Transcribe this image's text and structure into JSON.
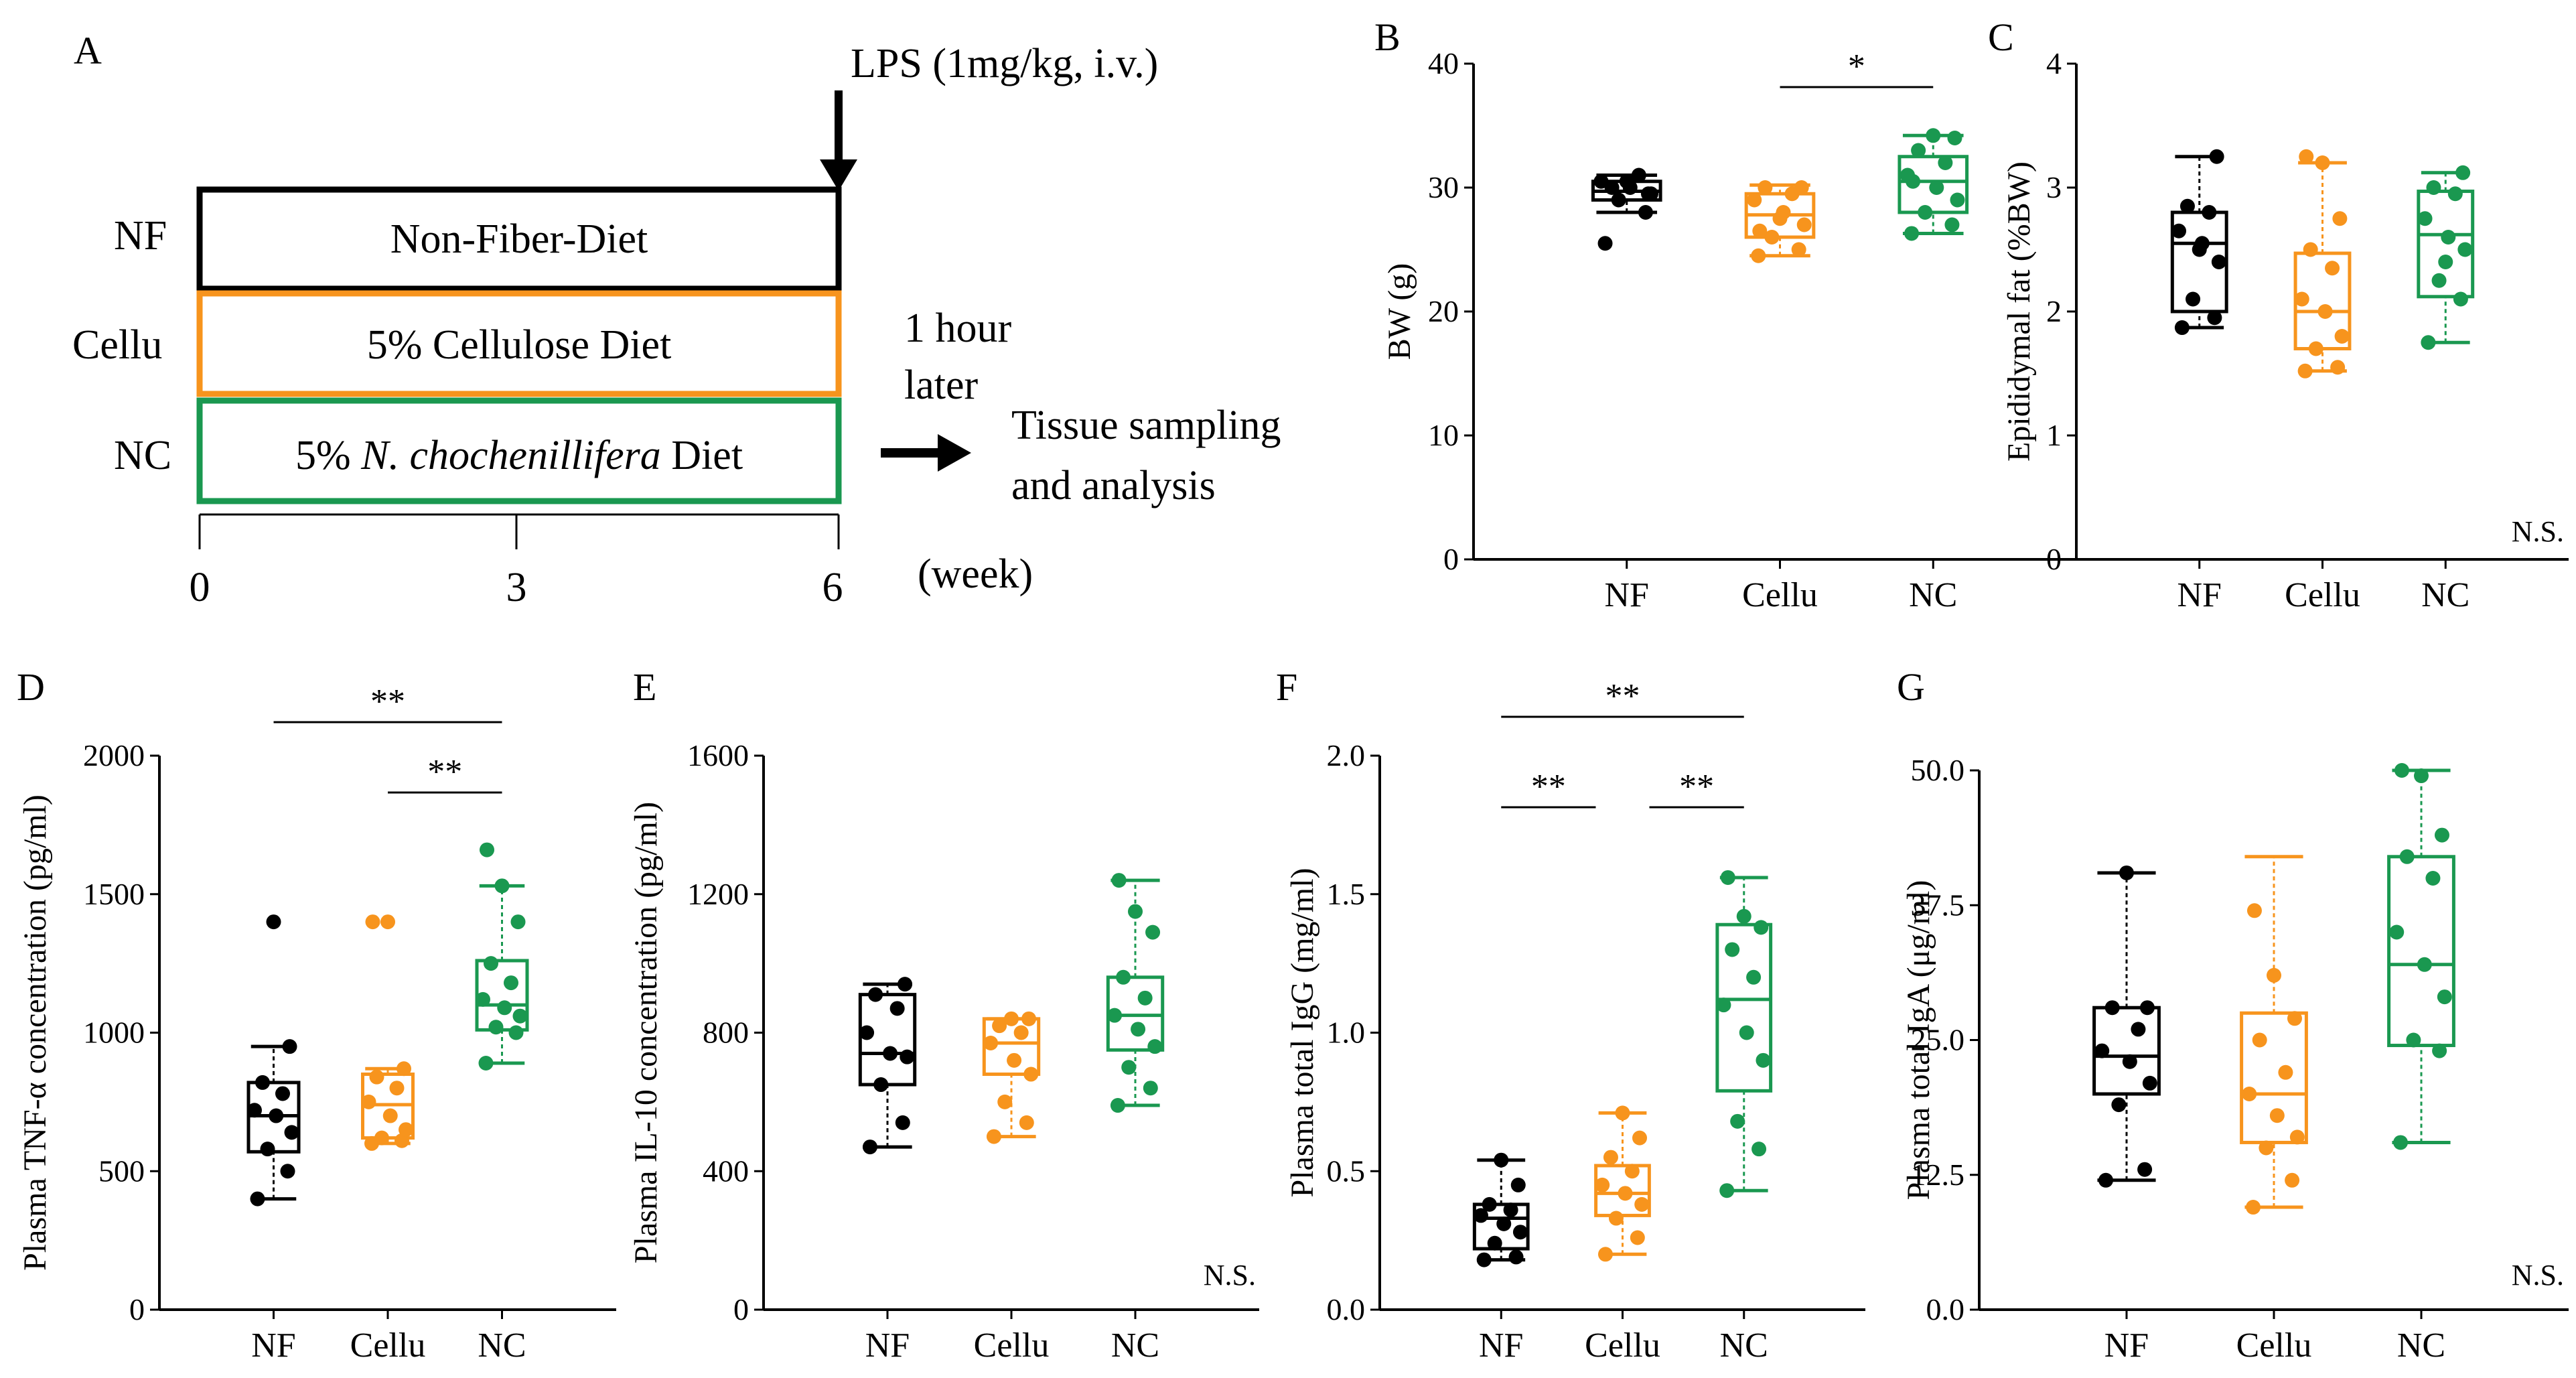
{
  "colors": {
    "NF": "#000000",
    "Cellu": "#f7941d",
    "NC": "#1a9850"
  },
  "diagram": {
    "panel": "A",
    "lps_label": "LPS (1mg/kg, i.v.)",
    "rows": [
      {
        "group": "NF",
        "diet_parts": [
          "Non-Fiber-Diet"
        ],
        "color": "#000000"
      },
      {
        "group": "Cellu",
        "diet_parts": [
          "5% Cellulose Diet"
        ],
        "color": "#f7941d"
      },
      {
        "group": "NC",
        "diet_parts": [
          "5% ",
          "N. chochenillifera",
          " Diet"
        ],
        "color": "#1a9850"
      }
    ],
    "later_lines": [
      "1 hour",
      "later"
    ],
    "outcome_lines": [
      "Tissue sampling",
      "and analysis"
    ],
    "week_ticks": [
      "0",
      "3",
      "6"
    ],
    "week_unit": "(week)"
  },
  "chart_data": [
    {
      "panel": "B",
      "type": "boxplot",
      "ylabel": "BW (g)",
      "categories": [
        "NF",
        "Cellu",
        "NC"
      ],
      "ylim": [
        0,
        40
      ],
      "yticks": [
        "0",
        "10",
        "20",
        "30",
        "40"
      ],
      "ytick_values": [
        0,
        10,
        20,
        30,
        40
      ],
      "series": [
        {
          "name": "NF",
          "q1": 29.0,
          "median": 29.7,
          "q3": 30.5,
          "whisker_low": 28.0,
          "whisker_high": 31.0,
          "points": [
            25.5,
            28,
            29,
            29.5,
            30,
            30.5,
            31,
            30,
            29.5,
            30.5
          ]
        },
        {
          "name": "Cellu",
          "q1": 26.0,
          "median": 27.8,
          "q3": 29.5,
          "whisker_low": 24.5,
          "whisker_high": 30.2,
          "points": [
            24.5,
            25,
            26,
            27,
            28,
            29,
            29.5,
            30,
            30,
            27.5,
            26.5
          ]
        },
        {
          "name": "NC",
          "q1": 28.0,
          "median": 30.5,
          "q3": 32.5,
          "whisker_low": 26.3,
          "whisker_high": 34.2,
          "points": [
            26.3,
            27,
            28,
            29,
            30,
            31,
            32,
            33,
            34,
            34.2,
            30.5
          ]
        }
      ],
      "significance": [
        {
          "from": 1,
          "to": 2,
          "label": "*"
        }
      ],
      "note": ""
    },
    {
      "panel": "C",
      "type": "boxplot",
      "ylabel": "Epididymal  fat (%BW)",
      "categories": [
        "NF",
        "Cellu",
        "NC"
      ],
      "ylim": [
        0,
        4
      ],
      "yticks": [
        "0",
        "1",
        "2",
        "3",
        "4"
      ],
      "ytick_values": [
        0,
        1,
        2,
        3,
        4
      ],
      "series": [
        {
          "name": "NF",
          "q1": 2.0,
          "median": 2.55,
          "q3": 2.8,
          "whisker_low": 1.87,
          "whisker_high": 3.25,
          "points": [
            1.87,
            1.95,
            2.1,
            2.4,
            2.55,
            2.65,
            2.8,
            2.85,
            3.25,
            2.5
          ]
        },
        {
          "name": "Cellu",
          "q1": 1.7,
          "median": 2.0,
          "q3": 2.47,
          "whisker_low": 1.52,
          "whisker_high": 3.2,
          "points": [
            1.52,
            1.55,
            1.7,
            1.8,
            2.0,
            2.1,
            2.35,
            2.5,
            2.75,
            3.2,
            3.25
          ]
        },
        {
          "name": "NC",
          "q1": 2.12,
          "median": 2.62,
          "q3": 2.97,
          "whisker_low": 1.75,
          "whisker_high": 3.12,
          "points": [
            1.75,
            2.1,
            2.25,
            2.5,
            2.6,
            2.75,
            2.95,
            3.0,
            3.12,
            2.4
          ]
        }
      ],
      "significance": [],
      "note": "N.S."
    },
    {
      "panel": "D",
      "type": "boxplot",
      "ylabel": "Plasma TNF-α concentration (pg/ml)",
      "categories": [
        "NF",
        "Cellu",
        "NC"
      ],
      "ylim": [
        0,
        2000
      ],
      "yticks": [
        "0",
        "500",
        "1000",
        "1500",
        "2000"
      ],
      "ytick_values": [
        0,
        500,
        1000,
        1500,
        2000
      ],
      "series": [
        {
          "name": "NF",
          "q1": 570,
          "median": 700,
          "q3": 820,
          "whisker_low": 400,
          "whisker_high": 950,
          "points": [
            400,
            500,
            580,
            640,
            700,
            720,
            780,
            820,
            950,
            1400
          ]
        },
        {
          "name": "Cellu",
          "q1": 620,
          "median": 740,
          "q3": 850,
          "whisker_low": 600,
          "whisker_high": 870,
          "points": [
            600,
            610,
            620,
            650,
            700,
            750,
            800,
            840,
            870,
            1400,
            1400
          ]
        },
        {
          "name": "NC",
          "q1": 1010,
          "median": 1100,
          "q3": 1260,
          "whisker_low": 890,
          "whisker_high": 1530,
          "points": [
            890,
            1000,
            1020,
            1060,
            1090,
            1120,
            1180,
            1250,
            1400,
            1530,
            1660
          ]
        }
      ],
      "significance": [
        {
          "from": 0,
          "to": 2,
          "label": "**"
        },
        {
          "from": 1,
          "to": 2,
          "label": "**"
        }
      ],
      "note": ""
    },
    {
      "panel": "E",
      "type": "boxplot",
      "ylabel": "Plasma IL-10 concentration (pg/ml)",
      "categories": [
        "NF",
        "Cellu",
        "NC"
      ],
      "ylim": [
        0,
        1600
      ],
      "yticks": [
        "0",
        "400",
        "800",
        "1200",
        "1600"
      ],
      "ytick_values": [
        0,
        400,
        800,
        1200,
        1600
      ],
      "series": [
        {
          "name": "NF",
          "q1": 650,
          "median": 740,
          "q3": 910,
          "whisker_low": 470,
          "whisker_high": 940,
          "points": [
            470,
            540,
            650,
            730,
            740,
            800,
            870,
            910,
            940
          ]
        },
        {
          "name": "Cellu",
          "q1": 680,
          "median": 770,
          "q3": 840,
          "whisker_low": 500,
          "whisker_high": 840,
          "points": [
            500,
            540,
            600,
            680,
            720,
            770,
            800,
            820,
            840,
            840
          ]
        },
        {
          "name": "NC",
          "q1": 750,
          "median": 850,
          "q3": 960,
          "whisker_low": 590,
          "whisker_high": 1240,
          "points": [
            590,
            640,
            700,
            760,
            810,
            850,
            900,
            960,
            1090,
            1150,
            1240
          ]
        }
      ],
      "significance": [],
      "note": "N.S."
    },
    {
      "panel": "F",
      "type": "boxplot",
      "ylabel": "Plasma total IgG (mg/ml)",
      "categories": [
        "NF",
        "Cellu",
        "NC"
      ],
      "ylim": [
        0,
        2.0
      ],
      "yticks": [
        "0.0",
        "0.5",
        "1.0",
        "1.5",
        "2.0"
      ],
      "ytick_values": [
        0,
        0.5,
        1.0,
        1.5,
        2.0
      ],
      "series": [
        {
          "name": "NF",
          "q1": 0.22,
          "median": 0.33,
          "q3": 0.38,
          "whisker_low": 0.18,
          "whisker_high": 0.54,
          "points": [
            0.18,
            0.19,
            0.24,
            0.28,
            0.31,
            0.34,
            0.36,
            0.38,
            0.45,
            0.54
          ]
        },
        {
          "name": "Cellu",
          "q1": 0.34,
          "median": 0.42,
          "q3": 0.52,
          "whisker_low": 0.2,
          "whisker_high": 0.71,
          "points": [
            0.2,
            0.26,
            0.33,
            0.38,
            0.42,
            0.45,
            0.5,
            0.55,
            0.62,
            0.71
          ]
        },
        {
          "name": "NC",
          "q1": 0.79,
          "median": 1.12,
          "q3": 1.39,
          "whisker_low": 0.43,
          "whisker_high": 1.56,
          "points": [
            0.43,
            0.58,
            0.68,
            0.9,
            1.0,
            1.1,
            1.2,
            1.3,
            1.38,
            1.42,
            1.56
          ]
        }
      ],
      "significance": [
        {
          "from": 0,
          "to": 2,
          "label": "**"
        },
        {
          "from": 0,
          "to": 1,
          "label": "**"
        },
        {
          "from": 1,
          "to": 2,
          "label": "**"
        }
      ],
      "note": ""
    },
    {
      "panel": "G",
      "type": "boxplot",
      "ylabel": "Plasma total IgA (μg/ml)",
      "categories": [
        "NF",
        "Cellu",
        "NC"
      ],
      "ylim": [
        0,
        50
      ],
      "yticks": [
        "0.0",
        "12.5",
        "25.0",
        "37.5",
        "50.0"
      ],
      "ytick_values": [
        0,
        12.5,
        25,
        37.5,
        50
      ],
      "series": [
        {
          "name": "NF",
          "q1": 20,
          "median": 23.5,
          "q3": 28,
          "whisker_low": 12,
          "whisker_high": 40.5,
          "points": [
            12,
            13,
            19,
            21,
            23,
            24,
            26,
            28,
            28,
            40.5
          ]
        },
        {
          "name": "Cellu",
          "q1": 15.5,
          "median": 20,
          "q3": 27.5,
          "whisker_low": 9.5,
          "whisker_high": 42,
          "points": [
            9.5,
            12,
            15,
            16,
            18,
            20,
            22,
            25,
            27,
            31,
            37
          ]
        },
        {
          "name": "NC",
          "q1": 24.5,
          "median": 32,
          "q3": 42,
          "whisker_low": 15.5,
          "whisker_high": 50,
          "points": [
            15.5,
            24,
            25,
            29,
            32,
            35,
            40,
            42,
            44,
            49.5,
            50
          ]
        }
      ],
      "significance": [],
      "note": "N.S."
    }
  ]
}
